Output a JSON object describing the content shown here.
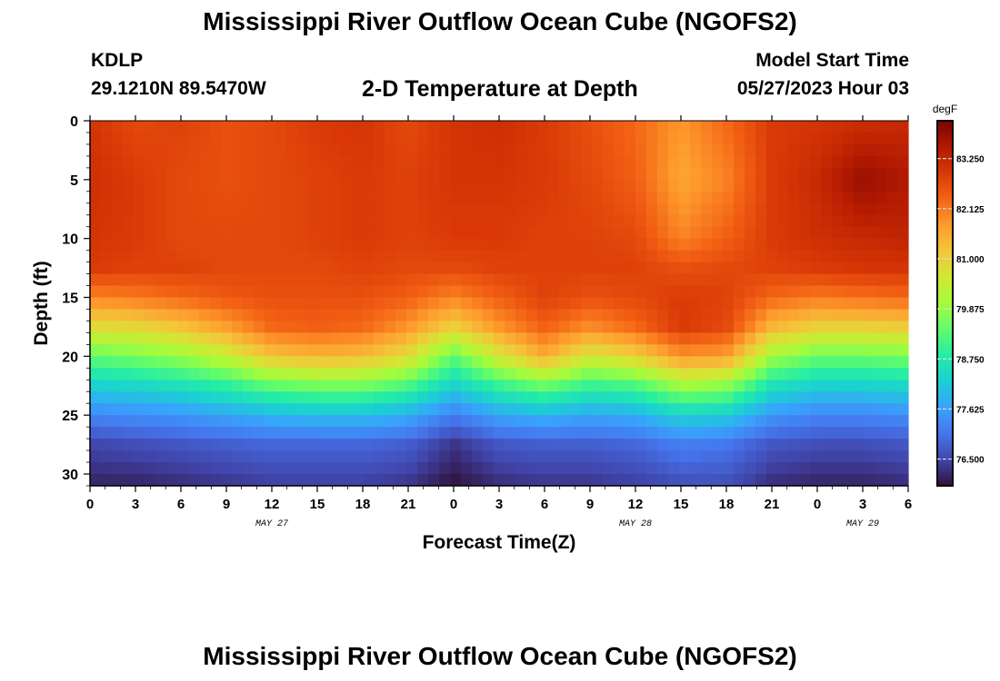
{
  "header": {
    "title": "Mississippi River Outflow Ocean Cube (NGOFS2)",
    "station_id": "KDLP",
    "station_coords": "29.1210N  89.5470W",
    "subtitle": "2-D Temperature at Depth",
    "start_label": "Model Start Time",
    "start_value": "05/27/2023 Hour 03"
  },
  "footer": {
    "title": "Mississippi River Outflow Ocean Cube (NGOFS2)"
  },
  "colors": {
    "background": "#ffffff",
    "axis": "#000000",
    "stops": [
      "#30123b",
      "#4145ab",
      "#4675ed",
      "#39a2fc",
      "#1bcfd4",
      "#24eca6",
      "#61fc6c",
      "#a4fc3b",
      "#d1e834",
      "#f3c63a",
      "#fe9b2d",
      "#f36315",
      "#d93806",
      "#b11901",
      "#7a0402"
    ]
  },
  "chart_data": {
    "type": "heatmap",
    "xlabel": "Forecast Time(Z)",
    "ylabel": "Depth (ft)",
    "x_ticks": [
      "0",
      "3",
      "6",
      "9",
      "12",
      "15",
      "18",
      "21",
      "0",
      "3",
      "6",
      "9",
      "12",
      "15",
      "18",
      "21",
      "0",
      "3",
      "6"
    ],
    "x_range_hours": [
      0,
      54
    ],
    "date_labels": [
      {
        "label": "MAY 27",
        "hour": 12
      },
      {
        "label": "MAY 28",
        "hour": 36
      },
      {
        "label": "MAY 29",
        "hour": 51
      }
    ],
    "y_ticks": [
      0,
      5,
      10,
      15,
      20,
      25,
      30
    ],
    "ylim": [
      0,
      31
    ],
    "colorbar": {
      "units": "degF",
      "range": [
        75.9,
        84.1
      ],
      "ticks": [
        "83.250",
        "82.125",
        "81.000",
        "79.875",
        "78.750",
        "77.625",
        "76.500"
      ]
    },
    "time_hours": [
      0,
      3,
      6,
      9,
      12,
      15,
      18,
      21,
      24,
      27,
      30,
      33,
      36,
      39,
      42,
      45,
      48,
      51,
      54
    ],
    "depths_ft": [
      0,
      5,
      10,
      12.5,
      15,
      17.5,
      20,
      22.5,
      25,
      27.5,
      31
    ],
    "temperature_degF": [
      [
        83.0,
        82.7,
        82.8,
        82.6,
        82.7,
        82.9,
        83.0,
        82.7,
        83.0,
        83.1,
        82.9,
        82.6,
        82.3,
        81.8,
        82.3,
        82.9,
        83.0,
        83.1,
        83.2
      ],
      [
        83.1,
        82.9,
        82.7,
        82.6,
        82.7,
        82.8,
        82.9,
        82.8,
        83.0,
        83.0,
        82.9,
        82.7,
        82.4,
        81.6,
        82.0,
        82.9,
        83.2,
        83.8,
        83.5
      ],
      [
        83.0,
        82.9,
        82.7,
        82.7,
        82.7,
        82.8,
        82.9,
        82.8,
        82.9,
        82.9,
        82.8,
        82.8,
        82.7,
        82.0,
        82.4,
        82.9,
        83.1,
        83.2,
        83.3
      ],
      [
        82.9,
        82.8,
        82.8,
        82.7,
        82.7,
        82.7,
        82.8,
        82.7,
        82.7,
        82.8,
        82.8,
        82.8,
        82.8,
        82.6,
        82.7,
        82.8,
        82.9,
        83.0,
        83.0
      ],
      [
        82.0,
        82.1,
        82.3,
        82.5,
        82.6,
        82.6,
        82.6,
        82.4,
        82.0,
        82.4,
        82.8,
        82.6,
        82.7,
        82.9,
        82.8,
        82.3,
        82.1,
        82.2,
        82.3
      ],
      [
        80.8,
        80.9,
        81.2,
        81.7,
        82.3,
        82.4,
        82.3,
        81.8,
        81.0,
        81.8,
        82.4,
        81.9,
        82.3,
        82.9,
        82.7,
        81.4,
        81.0,
        81.0,
        81.1
      ],
      [
        79.4,
        79.6,
        79.9,
        80.4,
        81.2,
        81.4,
        81.3,
        80.8,
        79.4,
        80.6,
        81.5,
        80.6,
        81.0,
        81.8,
        81.7,
        80.0,
        79.5,
        79.5,
        79.6
      ],
      [
        78.3,
        78.4,
        78.6,
        78.9,
        79.4,
        79.6,
        79.6,
        79.2,
        78.3,
        79.0,
        79.5,
        79.0,
        79.2,
        80.0,
        79.8,
        78.6,
        78.3,
        78.3,
        78.4
      ],
      [
        77.3,
        77.4,
        77.5,
        77.7,
        77.9,
        78.0,
        78.0,
        77.8,
        77.2,
        77.7,
        77.9,
        77.7,
        77.8,
        78.3,
        78.2,
        77.5,
        77.3,
        77.3,
        77.4
      ],
      [
        76.5,
        76.6,
        76.7,
        76.8,
        76.9,
        76.9,
        76.9,
        76.8,
        76.3,
        76.7,
        76.8,
        76.8,
        76.9,
        77.2,
        77.1,
        76.7,
        76.6,
        76.6,
        76.7
      ],
      [
        76.1,
        76.1,
        76.2,
        76.3,
        76.4,
        76.4,
        76.4,
        76.3,
        75.9,
        76.2,
        76.3,
        76.3,
        76.4,
        76.6,
        76.6,
        76.2,
        76.1,
        76.1,
        76.2
      ]
    ]
  }
}
